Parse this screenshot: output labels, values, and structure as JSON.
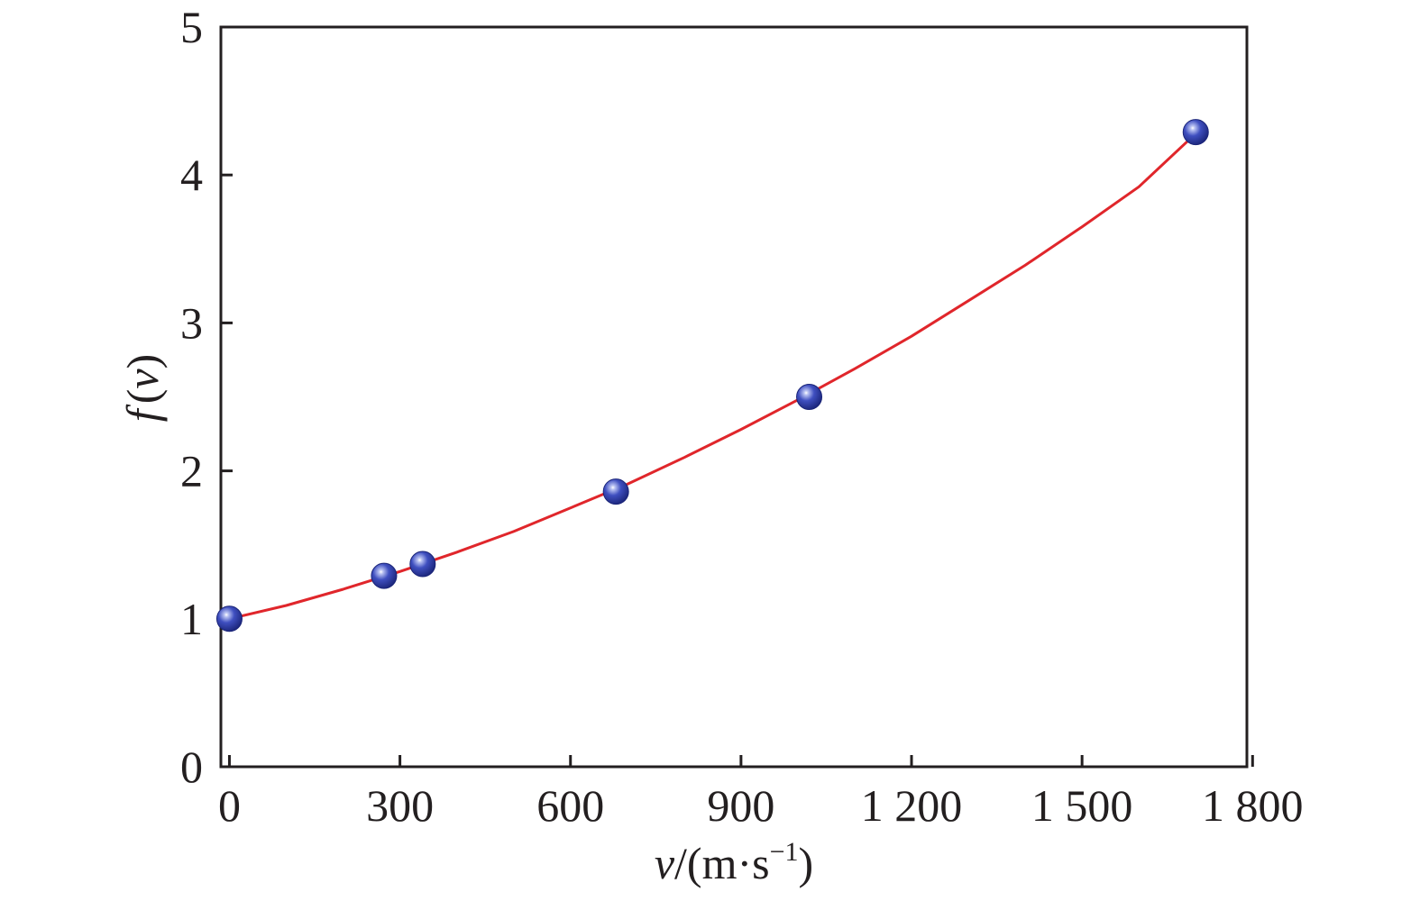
{
  "chart_data": {
    "type": "scatter",
    "title": "",
    "xlabel": {
      "var": "v",
      "unit_open": "/(m·s",
      "unit_sup": "−1",
      "unit_close": ")"
    },
    "ylabel": {
      "func": "f",
      "open": "(",
      "var": "v",
      "close": ")"
    },
    "xlim": [
      -15,
      1790
    ],
    "ylim": [
      0,
      5
    ],
    "x_ticks": [
      0,
      300,
      600,
      900,
      1200,
      1500,
      1800
    ],
    "x_tick_labels": [
      "0",
      "300",
      "600",
      "900",
      "1 200",
      "1 500",
      "1 800"
    ],
    "y_ticks": [
      0,
      1,
      2,
      3,
      4,
      5
    ],
    "y_tick_labels": [
      "0",
      "1",
      "2",
      "3",
      "4",
      "5"
    ],
    "grid": false,
    "series": [
      {
        "kind": "points",
        "color": "#2f3fa8",
        "x": [
          0,
          272,
          340,
          680,
          1020,
          1700
        ],
        "y": [
          1.0,
          1.29,
          1.37,
          1.86,
          2.5,
          4.29
        ]
      },
      {
        "kind": "fit-curve",
        "color": "#e0262b",
        "x": [
          0,
          100,
          200,
          300,
          400,
          500,
          600,
          700,
          800,
          900,
          1000,
          1100,
          1200,
          1300,
          1400,
          1500,
          1600,
          1700
        ],
        "y": [
          1.0,
          1.09,
          1.2,
          1.32,
          1.45,
          1.59,
          1.75,
          1.91,
          2.09,
          2.28,
          2.48,
          2.69,
          2.91,
          3.15,
          3.39,
          3.65,
          3.92,
          4.28
        ]
      }
    ]
  }
}
